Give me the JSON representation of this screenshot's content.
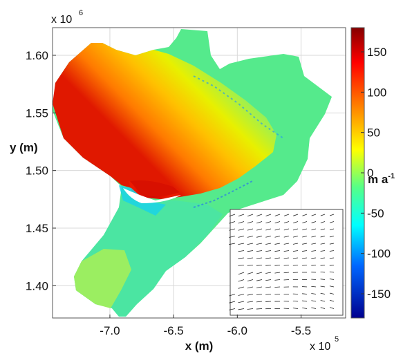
{
  "map": {
    "x_axis": {
      "label": "x (m)",
      "ticks": [
        "-7.0",
        "-6.5",
        "-6.0",
        "-5.5"
      ],
      "tick_values": [
        -7.0,
        -6.5,
        -6.0,
        -5.5
      ],
      "range": [
        -7.45,
        -5.15
      ],
      "exponent_base": "x 10",
      "exponent": "5"
    },
    "y_axis": {
      "label": "y (m)",
      "ticks": [
        "1.60",
        "1.55",
        "1.50",
        "1.45",
        "1.40"
      ],
      "tick_values": [
        1.6,
        1.55,
        1.5,
        1.45,
        1.4
      ],
      "range": [
        1.372,
        1.624
      ],
      "exponent_base": "x 10",
      "exponent": "6"
    },
    "colorbar": {
      "ticks": [
        "150",
        "100",
        "50",
        "0",
        "-50",
        "-100",
        "-150"
      ],
      "tick_values": [
        150,
        100,
        50,
        0,
        -50,
        -100,
        -150
      ],
      "range": [
        -180,
        180
      ],
      "unit": "m a",
      "unit_exponent": "-1",
      "colormap": [
        "#00008f",
        "#0000ff",
        "#00ffff",
        "#80ff80",
        "#ffff00",
        "#ff8000",
        "#ff0000",
        "#800000"
      ]
    },
    "inset": {
      "content": "velocity-vector-field",
      "arrow_color": "#222222"
    }
  }
}
